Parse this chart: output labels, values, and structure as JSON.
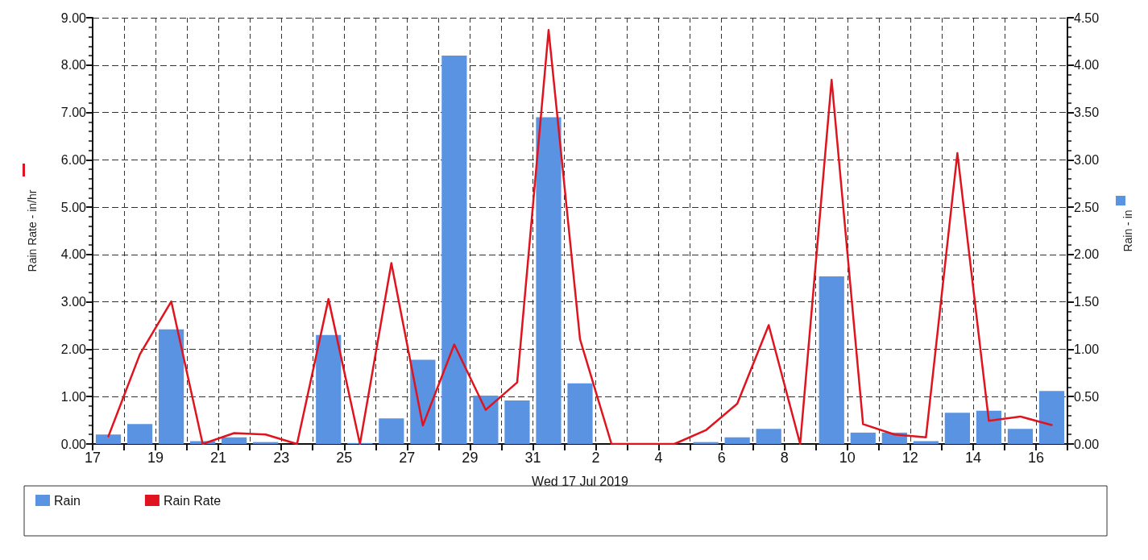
{
  "chart_data": {
    "type": "bar",
    "xlabel": "Wed 17 Jul 2019",
    "ylabel": "Rain Rate - in/hr",
    "y2label": "Rain - in",
    "x": [
      "2019-07-17T12:00",
      "2019-07-18T12:00",
      "2019-07-19T12:00",
      "2019-07-20T12:00",
      "2019-07-21T12:00",
      "2019-07-22T12:00",
      "2019-07-23T12:00",
      "2019-07-24T12:00",
      "2019-07-25T12:00",
      "2019-07-26T12:00",
      "2019-07-27T12:00",
      "2019-07-28T12:00",
      "2019-07-29T12:00",
      "2019-07-30T12:00",
      "2019-07-31T12:00",
      "2019-08-01T12:00",
      "2019-08-02T12:00",
      "2019-08-03T12:00",
      "2019-08-04T12:00",
      "2019-08-05T12:00",
      "2019-08-06T12:00",
      "2019-08-07T12:00",
      "2019-08-08T12:00",
      "2019-08-09T12:00",
      "2019-08-10T12:00",
      "2019-08-11T12:00",
      "2019-08-12T12:00",
      "2019-08-13T12:00",
      "2019-08-14T12:00",
      "2019-08-15T12:00",
      "2019-08-16T12:00"
    ],
    "series": [
      {
        "name": "Rain",
        "axis": "y2",
        "color": "#5b93e3",
        "values": [
          0.1,
          0.21,
          1.21,
          0.03,
          0.07,
          0.02,
          0,
          1.15,
          0.01,
          0.27,
          0.89,
          4.1,
          0.51,
          0.46,
          3.45,
          0.64,
          null,
          0,
          0,
          0.02,
          0.07,
          0.16,
          0,
          1.77,
          0.12,
          0.12,
          0.03,
          0.33,
          0.35,
          0.16,
          0.56
        ]
      },
      {
        "name": "Rain Rate",
        "type": "line",
        "color": "#e0141e",
        "values": [
          0.16,
          1.89,
          3.01,
          0,
          0.23,
          0.2,
          0,
          3.06,
          0,
          3.82,
          0.39,
          2.1,
          0.72,
          1.3,
          8.74,
          2.21,
          0,
          0,
          0,
          0.29,
          0.85,
          2.51,
          0,
          7.69,
          0.42,
          0.2,
          0.14,
          6.14,
          0.49,
          0.58,
          0.4
        ]
      }
    ],
    "xlim": [
      "2019-07-17",
      "2019-08-17"
    ],
    "xticks": [
      {
        "value": "2019-07-17",
        "label": "17"
      },
      {
        "value": "2019-07-18",
        "label": null
      },
      {
        "value": "2019-07-19",
        "label": "19"
      },
      {
        "value": "2019-07-20",
        "label": null
      },
      {
        "value": "2019-07-21",
        "label": "21"
      },
      {
        "value": "2019-07-22",
        "label": null
      },
      {
        "value": "2019-07-23",
        "label": "23"
      },
      {
        "value": "2019-07-24",
        "label": null
      },
      {
        "value": "2019-07-25",
        "label": "25"
      },
      {
        "value": "2019-07-26",
        "label": null
      },
      {
        "value": "2019-07-27",
        "label": "27"
      },
      {
        "value": "2019-07-28",
        "label": null
      },
      {
        "value": "2019-07-29",
        "label": "29"
      },
      {
        "value": "2019-07-30",
        "label": null
      },
      {
        "value": "2019-07-31",
        "label": "31"
      },
      {
        "value": "2019-08-01",
        "label": null
      },
      {
        "value": "2019-08-02",
        "label": "2"
      },
      {
        "value": "2019-08-03",
        "label": null
      },
      {
        "value": "2019-08-04",
        "label": "4"
      },
      {
        "value": "2019-08-05",
        "label": null
      },
      {
        "value": "2019-08-06",
        "label": "6"
      },
      {
        "value": "2019-08-07",
        "label": null
      },
      {
        "value": "2019-08-08",
        "label": "8"
      },
      {
        "value": "2019-08-09",
        "label": null
      },
      {
        "value": "2019-08-10",
        "label": "10"
      },
      {
        "value": "2019-08-11",
        "label": null
      },
      {
        "value": "2019-08-12",
        "label": "12"
      },
      {
        "value": "2019-08-13",
        "label": null
      },
      {
        "value": "2019-08-14",
        "label": "14"
      },
      {
        "value": "2019-08-15",
        "label": null
      },
      {
        "value": "2019-08-16",
        "label": "16"
      },
      {
        "value": "2019-08-17",
        "label": null
      }
    ],
    "ylim": [
      0,
      9
    ],
    "yticks": [
      {
        "value": 0,
        "label": "0.00"
      },
      {
        "value": 1,
        "label": "1.00"
      },
      {
        "value": 2,
        "label": "2.00"
      },
      {
        "value": 3,
        "label": "3.00"
      },
      {
        "value": 4,
        "label": "4.00"
      },
      {
        "value": 5,
        "label": "5.00"
      },
      {
        "value": 6,
        "label": "6.00"
      },
      {
        "value": 7,
        "label": "7.00"
      },
      {
        "value": 8,
        "label": "8.00"
      },
      {
        "value": 9,
        "label": "9.00"
      }
    ],
    "y2lim": [
      0,
      4.5
    ],
    "y2ticks": [
      {
        "value": 0,
        "label": "0.00"
      },
      {
        "value": 0.5,
        "label": "0.50"
      },
      {
        "value": 1,
        "label": "1.00"
      },
      {
        "value": 1.5,
        "label": "1.50"
      },
      {
        "value": 2,
        "label": "2.00"
      },
      {
        "value": 2.5,
        "label": "2.50"
      },
      {
        "value": 3,
        "label": "3.00"
      },
      {
        "value": 3.5,
        "label": "3.50"
      },
      {
        "value": 4,
        "label": "4.00"
      },
      {
        "value": 4.5,
        "label": "4.50"
      }
    ],
    "grid": true,
    "legend": "bottom left",
    "line_style": "solid",
    "marker": "none"
  }
}
